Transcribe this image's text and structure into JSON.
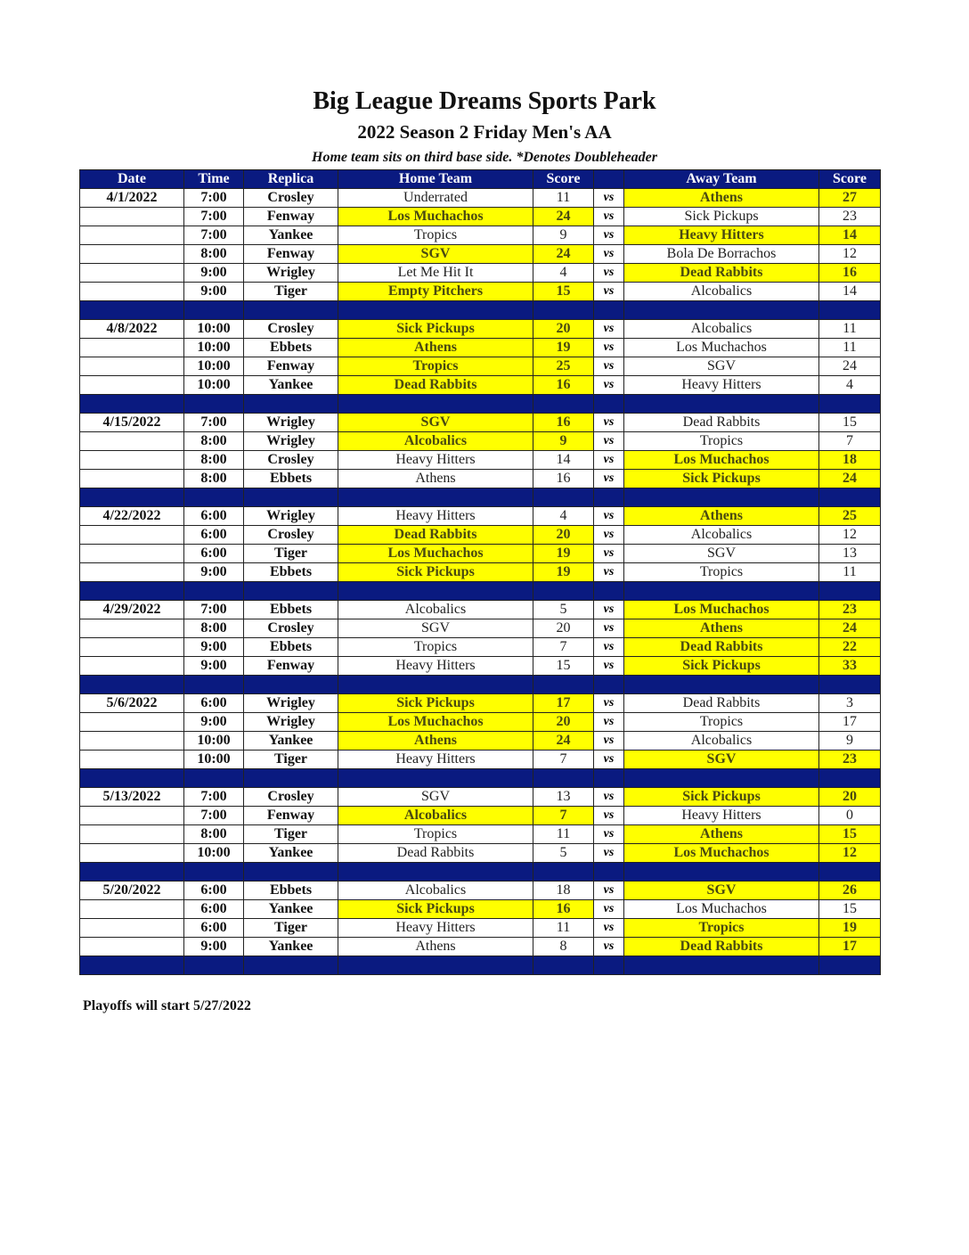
{
  "header": {
    "title": "Big League Dreams Sports Park",
    "subtitle": "2022 Season 2 Friday Men's AA",
    "note": "Home team sits on third base side.  *Denotes Doubleheader"
  },
  "columns": [
    "Date",
    "Time",
    "Replica",
    "Home Team",
    "Score",
    "",
    "Away Team",
    "Score"
  ],
  "vs_label": "vs",
  "colors": {
    "header_bg": "#0a1a80",
    "winner_bg": "#ffff00"
  },
  "weeks": [
    {
      "date": "4/1/2022",
      "games": [
        [
          "7:00",
          "Crosley",
          "Underrated",
          11,
          "Athens",
          27
        ],
        [
          "7:00",
          "Fenway",
          "Los Muchachos",
          24,
          "Sick Pickups",
          23
        ],
        [
          "7:00",
          "Yankee",
          "Tropics",
          9,
          "Heavy Hitters",
          14
        ],
        [
          "8:00",
          "Fenway",
          "SGV",
          24,
          "Bola De Borrachos",
          12
        ],
        [
          "9:00",
          "Wrigley",
          "Let Me Hit It",
          4,
          "Dead Rabbits",
          16
        ],
        [
          "9:00",
          "Tiger",
          "Empty Pitchers",
          15,
          "Alcobalics",
          14
        ]
      ]
    },
    {
      "date": "4/8/2022",
      "games": [
        [
          "10:00",
          "Crosley",
          "Sick Pickups",
          20,
          "Alcobalics",
          11
        ],
        [
          "10:00",
          "Ebbets",
          "Athens",
          19,
          "Los Muchachos",
          11
        ],
        [
          "10:00",
          "Fenway",
          "Tropics",
          25,
          "SGV",
          24
        ],
        [
          "10:00",
          "Yankee",
          "Dead Rabbits",
          16,
          "Heavy Hitters",
          4
        ]
      ]
    },
    {
      "date": "4/15/2022",
      "games": [
        [
          "7:00",
          "Wrigley",
          "SGV",
          16,
          "Dead Rabbits",
          15
        ],
        [
          "8:00",
          "Wrigley",
          "Alcobalics",
          9,
          "Tropics",
          7
        ],
        [
          "8:00",
          "Crosley",
          "Heavy Hitters",
          14,
          "Los Muchachos",
          18
        ],
        [
          "8:00",
          "Ebbets",
          "Athens",
          16,
          "Sick Pickups",
          24
        ]
      ]
    },
    {
      "date": "4/22/2022",
      "games": [
        [
          "6:00",
          "Wrigley",
          "Heavy Hitters",
          4,
          "Athens",
          25
        ],
        [
          "6:00",
          "Crosley",
          "Dead Rabbits",
          20,
          "Alcobalics",
          12
        ],
        [
          "6:00",
          "Tiger",
          "Los Muchachos",
          19,
          "SGV",
          13
        ],
        [
          "9:00",
          "Ebbets",
          "Sick Pickups",
          19,
          "Tropics",
          11
        ]
      ]
    },
    {
      "date": "4/29/2022",
      "games": [
        [
          "7:00",
          "Ebbets",
          "Alcobalics",
          5,
          "Los Muchachos",
          23
        ],
        [
          "8:00",
          "Crosley",
          "SGV",
          20,
          "Athens",
          24
        ],
        [
          "9:00",
          "Ebbets",
          "Tropics",
          7,
          "Dead Rabbits",
          22
        ],
        [
          "9:00",
          "Fenway",
          "Heavy Hitters",
          15,
          "Sick Pickups",
          33
        ]
      ]
    },
    {
      "date": "5/6/2022",
      "games": [
        [
          "6:00",
          "Wrigley",
          "Sick Pickups",
          17,
          "Dead Rabbits",
          3
        ],
        [
          "9:00",
          "Wrigley",
          "Los Muchachos",
          20,
          "Tropics",
          17
        ],
        [
          "10:00",
          "Yankee",
          "Athens",
          24,
          "Alcobalics",
          9
        ],
        [
          "10:00",
          "Tiger",
          "Heavy Hitters",
          7,
          "SGV",
          23
        ]
      ]
    },
    {
      "date": "5/13/2022",
      "games": [
        [
          "7:00",
          "Crosley",
          "SGV",
          13,
          "Sick Pickups",
          20
        ],
        [
          "7:00",
          "Fenway",
          "Alcobalics",
          7,
          "Heavy Hitters",
          0
        ],
        [
          "8:00",
          "Tiger",
          "Tropics",
          11,
          "Athens",
          15
        ],
        [
          "10:00",
          "Yankee",
          "Dead Rabbits",
          5,
          "Los Muchachos",
          12
        ]
      ]
    },
    {
      "date": "5/20/2022",
      "games": [
        [
          "6:00",
          "Ebbets",
          "Alcobalics",
          18,
          "SGV",
          26
        ],
        [
          "6:00",
          "Yankee",
          "Sick Pickups",
          16,
          "Los Muchachos",
          15
        ],
        [
          "6:00",
          "Tiger",
          "Heavy Hitters",
          11,
          "Tropics",
          19
        ],
        [
          "9:00",
          "Yankee",
          "Athens",
          8,
          "Dead Rabbits",
          17
        ]
      ]
    }
  ],
  "footer": "Playoffs will start 5/27/2022"
}
